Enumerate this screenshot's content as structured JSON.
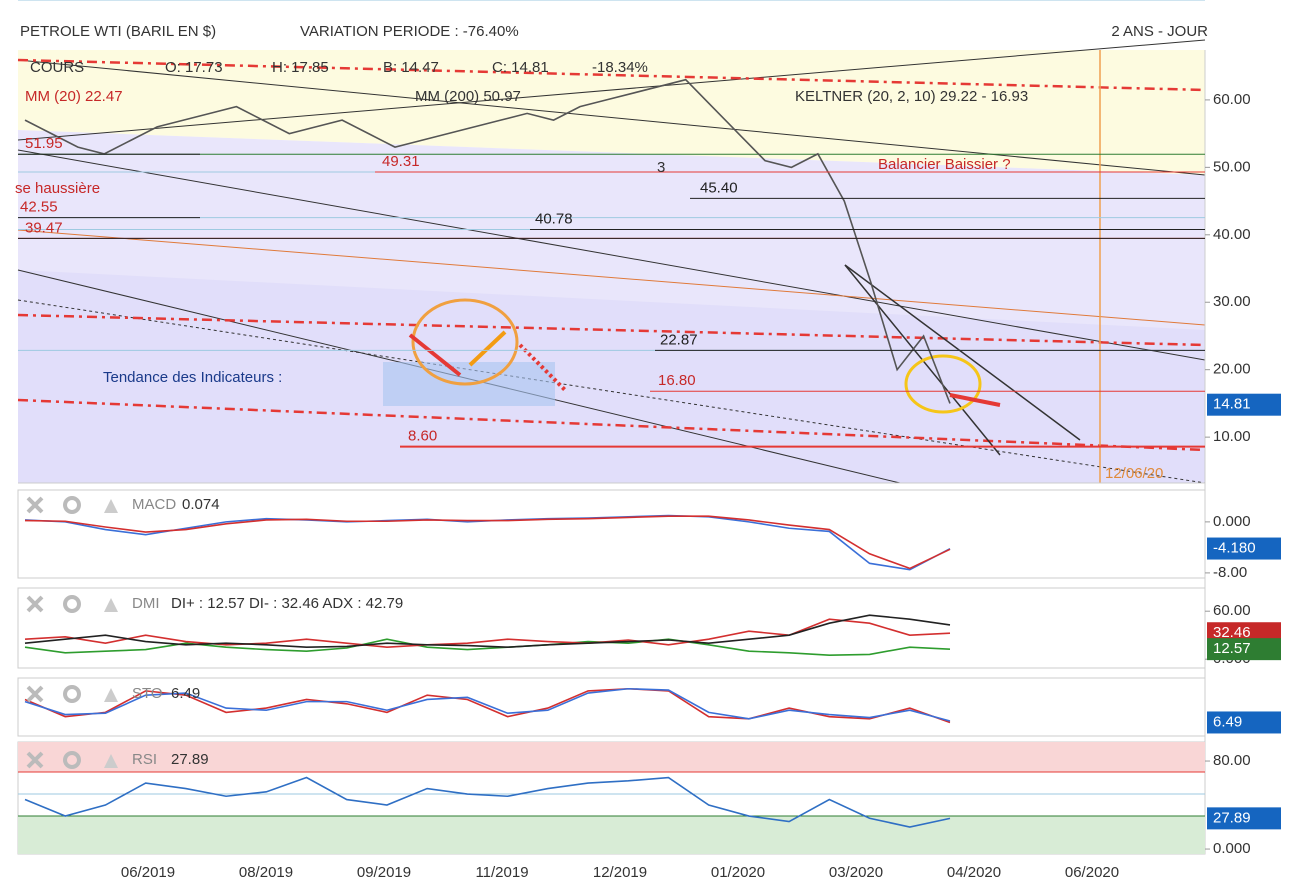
{
  "header": {
    "title": "PETROLE WTI (BARIL EN $)",
    "variation": "VARIATION PERIODE : -76.40%",
    "period": "2 ANS - JOUR"
  },
  "xaxis": {
    "categories": [
      "06/2019",
      "08/2019",
      "09/2019",
      "11/2019",
      "12/2019",
      "01/2020",
      "03/2020",
      "04/2020",
      "06/2020"
    ]
  },
  "main": {
    "legend": [
      "COURS",
      "O: 17.73",
      "H: 17.85",
      "B: 14.47",
      "C: 14.81",
      "-18.34%",
      "MM (20) 22.47",
      "MM (200) 50.97",
      "KELTNER (20, 2, 10) 29.22 - 16.93"
    ],
    "ylim": [
      3.2,
      67.4
    ],
    "yticks": [
      {
        "value": 60,
        "label": "60.00"
      },
      {
        "value": 50,
        "label": "50.00"
      },
      {
        "value": 40,
        "label": "40.00"
      },
      {
        "value": 30,
        "label": "30.00"
      },
      {
        "value": 20,
        "label": "20.00"
      },
      {
        "value": 10,
        "label": "10.00"
      }
    ],
    "series": [
      {
        "color": "#555555",
        "values": [
          57,
          55,
          53,
          52,
          54,
          56,
          57,
          58,
          59,
          57,
          55,
          56,
          57,
          55,
          53,
          54,
          55,
          56,
          57,
          58,
          57,
          59,
          60,
          61,
          62,
          63,
          59,
          55,
          51,
          50,
          52,
          45,
          33,
          20,
          25,
          15
        ]
      }
    ],
    "levels": [
      51.95,
      42.55,
      39.47,
      49.31,
      {
        "value": 45.4,
        "label": "45.40"
      },
      40.78,
      22.87,
      {
        "value": 16.8,
        "label": "16.80"
      },
      {
        "value": 8.6,
        "label": "8.60"
      }
    ],
    "annotations": [
      "se haussière",
      "Balancier Baissier ?",
      "Tendance des Indicateurs :",
      "12/06/20",
      "3"
    ],
    "badges": [
      {
        "value": 14.81,
        "color": "#1565c0"
      }
    ]
  },
  "panels": [
    {
      "name": "MACD",
      "value": 0.074,
      "ylim": [
        -8.8,
        5
      ],
      "yticks": [
        {
          "value": 0,
          "label": "0.000"
        },
        {
          "value": -8,
          "label": "-8.00"
        }
      ],
      "series": [
        {
          "color": "#3a6fd8",
          "values": [
            0.3,
            0,
            -1.2,
            -2,
            -1,
            0,
            0.5,
            0.3,
            0,
            0.2,
            0.4,
            0,
            0.3,
            0.5,
            0.6,
            0.8,
            1,
            0.8,
            0,
            -1,
            -1.5,
            -6.5,
            -7.5,
            -4.2
          ]
        },
        {
          "color": "#d32f2f",
          "values": [
            0.2,
            0.1,
            -0.8,
            -1.6,
            -1.2,
            -0.3,
            0.3,
            0.4,
            0.1,
            0.1,
            0.3,
            0.2,
            0.2,
            0.4,
            0.5,
            0.7,
            0.9,
            0.9,
            0.3,
            -0.5,
            -1.2,
            -5,
            -7.3,
            -4.3
          ]
        }
      ],
      "badges": [
        {
          "value": -4.18,
          "label": "-4.180",
          "color": "#1565c0"
        }
      ]
    },
    {
      "name": "DMI",
      "value": "DI+ : 12.57 DI- : 32.46 ADX : 42.79",
      "ylim": [
        -11,
        89
      ],
      "yticks": [
        {
          "value": 60,
          "label": "60.00"
        },
        {
          "value": 0,
          "label": "0.000"
        }
      ],
      "series": [
        {
          "color": "#2e9d2e",
          "values": [
            15,
            8,
            10,
            12,
            20,
            15,
            12,
            10,
            14,
            25,
            15,
            12,
            15,
            18,
            22,
            20,
            25,
            18,
            10,
            8,
            5,
            6,
            15,
            12.57
          ]
        },
        {
          "color": "#d32f2f",
          "values": [
            25,
            28,
            20,
            30,
            22,
            18,
            20,
            25,
            20,
            15,
            18,
            20,
            25,
            22,
            20,
            24,
            18,
            25,
            35,
            30,
            50,
            45,
            30,
            32.46
          ]
        },
        {
          "color": "#222222",
          "values": [
            20,
            25,
            30,
            22,
            18,
            20,
            18,
            15,
            16,
            20,
            18,
            17,
            15,
            18,
            20,
            22,
            24,
            20,
            25,
            30,
            45,
            55,
            50,
            42.79
          ]
        }
      ],
      "badges": [
        {
          "value": 32.46,
          "color": "#c62828"
        },
        {
          "value": 12.57,
          "color": "#2e7d32"
        }
      ]
    },
    {
      "name": "STO",
      "value": 6.49,
      "ylim": [
        -25,
        110
      ],
      "yticks": [],
      "series": [
        {
          "color": "#d32f2f",
          "values": [
            60,
            20,
            30,
            80,
            70,
            30,
            40,
            60,
            50,
            30,
            70,
            60,
            20,
            40,
            80,
            85,
            80,
            20,
            15,
            40,
            20,
            15,
            40,
            6.49
          ]
        },
        {
          "color": "#3a6fd8",
          "values": [
            55,
            25,
            28,
            70,
            75,
            40,
            35,
            55,
            55,
            35,
            60,
            65,
            28,
            35,
            75,
            85,
            82,
            30,
            15,
            35,
            25,
            18,
            35,
            10
          ]
        }
      ],
      "badges": [
        {
          "value": 6.49,
          "color": "#1565c0"
        }
      ]
    },
    {
      "name": "RSI",
      "value": 27.89,
      "ylim": [
        -4.5,
        97.3
      ],
      "yticks": [
        {
          "value": 80,
          "label": "80.00"
        },
        {
          "value": 0,
          "label": "0.000"
        }
      ],
      "levels": [
        30,
        50,
        70
      ],
      "series": [
        {
          "color": "#2f6fc4",
          "values": [
            45,
            30,
            40,
            60,
            55,
            48,
            52,
            65,
            45,
            40,
            55,
            50,
            48,
            55,
            60,
            62,
            65,
            40,
            30,
            25,
            45,
            28,
            20,
            27.89
          ]
        }
      ],
      "badges": [
        {
          "value": 27.89,
          "color": "#1565c0"
        }
      ]
    }
  ]
}
